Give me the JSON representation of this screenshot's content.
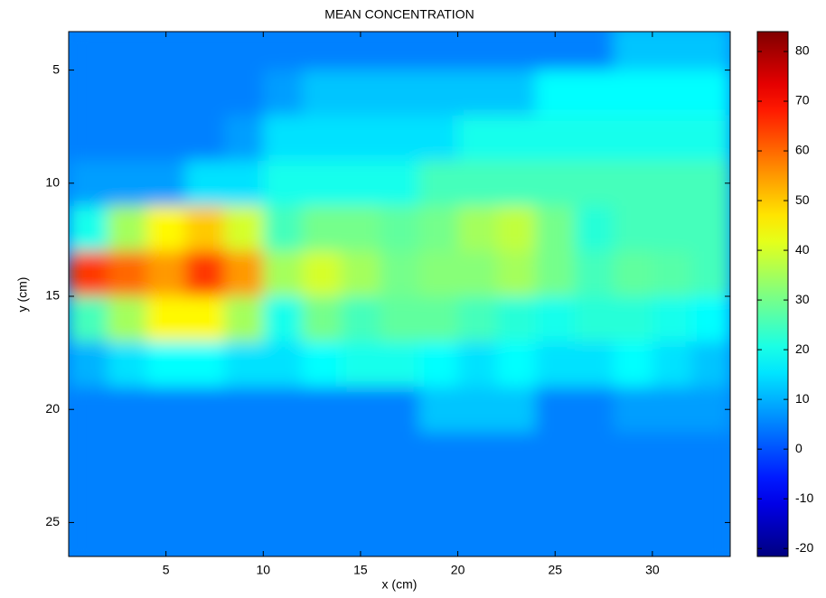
{
  "chart_data": {
    "type": "heatmap",
    "title": "MEAN CONCENTRATION",
    "xlabel": "x (cm)",
    "ylabel": "y (cm)",
    "colormap": "jet",
    "x": [
      1,
      3,
      5,
      7,
      9,
      11,
      13,
      15,
      17,
      19,
      21,
      23,
      25,
      27,
      29,
      31,
      33
    ],
    "y": [
      4,
      6,
      8,
      10,
      12,
      14,
      16,
      18,
      20,
      22,
      24,
      26
    ],
    "z": [
      [
        5,
        5,
        5,
        5,
        5,
        5,
        5,
        5,
        5,
        5,
        5,
        5,
        5,
        5,
        12,
        12,
        12
      ],
      [
        5,
        5,
        5,
        5,
        5,
        8,
        12,
        12,
        12,
        12,
        12,
        12,
        18,
        18,
        18,
        18,
        18
      ],
      [
        5,
        5,
        5,
        5,
        8,
        15,
        15,
        15,
        15,
        15,
        20,
        20,
        20,
        20,
        20,
        20,
        20
      ],
      [
        8,
        8,
        8,
        15,
        15,
        20,
        20,
        20,
        20,
        25,
        25,
        25,
        25,
        25,
        25,
        25,
        25
      ],
      [
        20,
        35,
        45,
        50,
        40,
        25,
        30,
        30,
        28,
        30,
        35,
        38,
        30,
        22,
        25,
        25,
        25
      ],
      [
        65,
        60,
        55,
        65,
        55,
        35,
        40,
        35,
        30,
        32,
        32,
        35,
        30,
        25,
        28,
        27,
        25
      ],
      [
        25,
        35,
        45,
        45,
        35,
        20,
        30,
        25,
        28,
        28,
        25,
        22,
        20,
        22,
        22,
        20,
        18
      ],
      [
        10,
        15,
        18,
        18,
        15,
        15,
        18,
        20,
        20,
        18,
        15,
        18,
        15,
        15,
        18,
        15,
        12
      ],
      [
        5,
        5,
        5,
        5,
        5,
        5,
        5,
        5,
        5,
        12,
        12,
        12,
        5,
        5,
        8,
        8,
        8
      ],
      [
        5,
        5,
        5,
        5,
        5,
        5,
        5,
        5,
        5,
        5,
        5,
        5,
        5,
        5,
        5,
        5,
        5
      ],
      [
        5,
        5,
        5,
        5,
        5,
        5,
        5,
        5,
        5,
        5,
        5,
        5,
        5,
        5,
        5,
        5,
        5
      ],
      [
        5,
        5,
        5,
        5,
        5,
        5,
        5,
        5,
        5,
        5,
        5,
        5,
        5,
        5,
        5,
        5,
        5
      ]
    ],
    "xlim": [
      0,
      34
    ],
    "xticks": [
      5,
      10,
      15,
      20,
      25,
      30
    ],
    "ylim": [
      3.3,
      26.5
    ],
    "yticks": [
      5,
      10,
      15,
      20,
      25
    ],
    "clim": [
      -21.6,
      84
    ],
    "cticks": [
      -20,
      -10,
      0,
      10,
      20,
      30,
      40,
      50,
      60,
      70,
      80
    ]
  }
}
